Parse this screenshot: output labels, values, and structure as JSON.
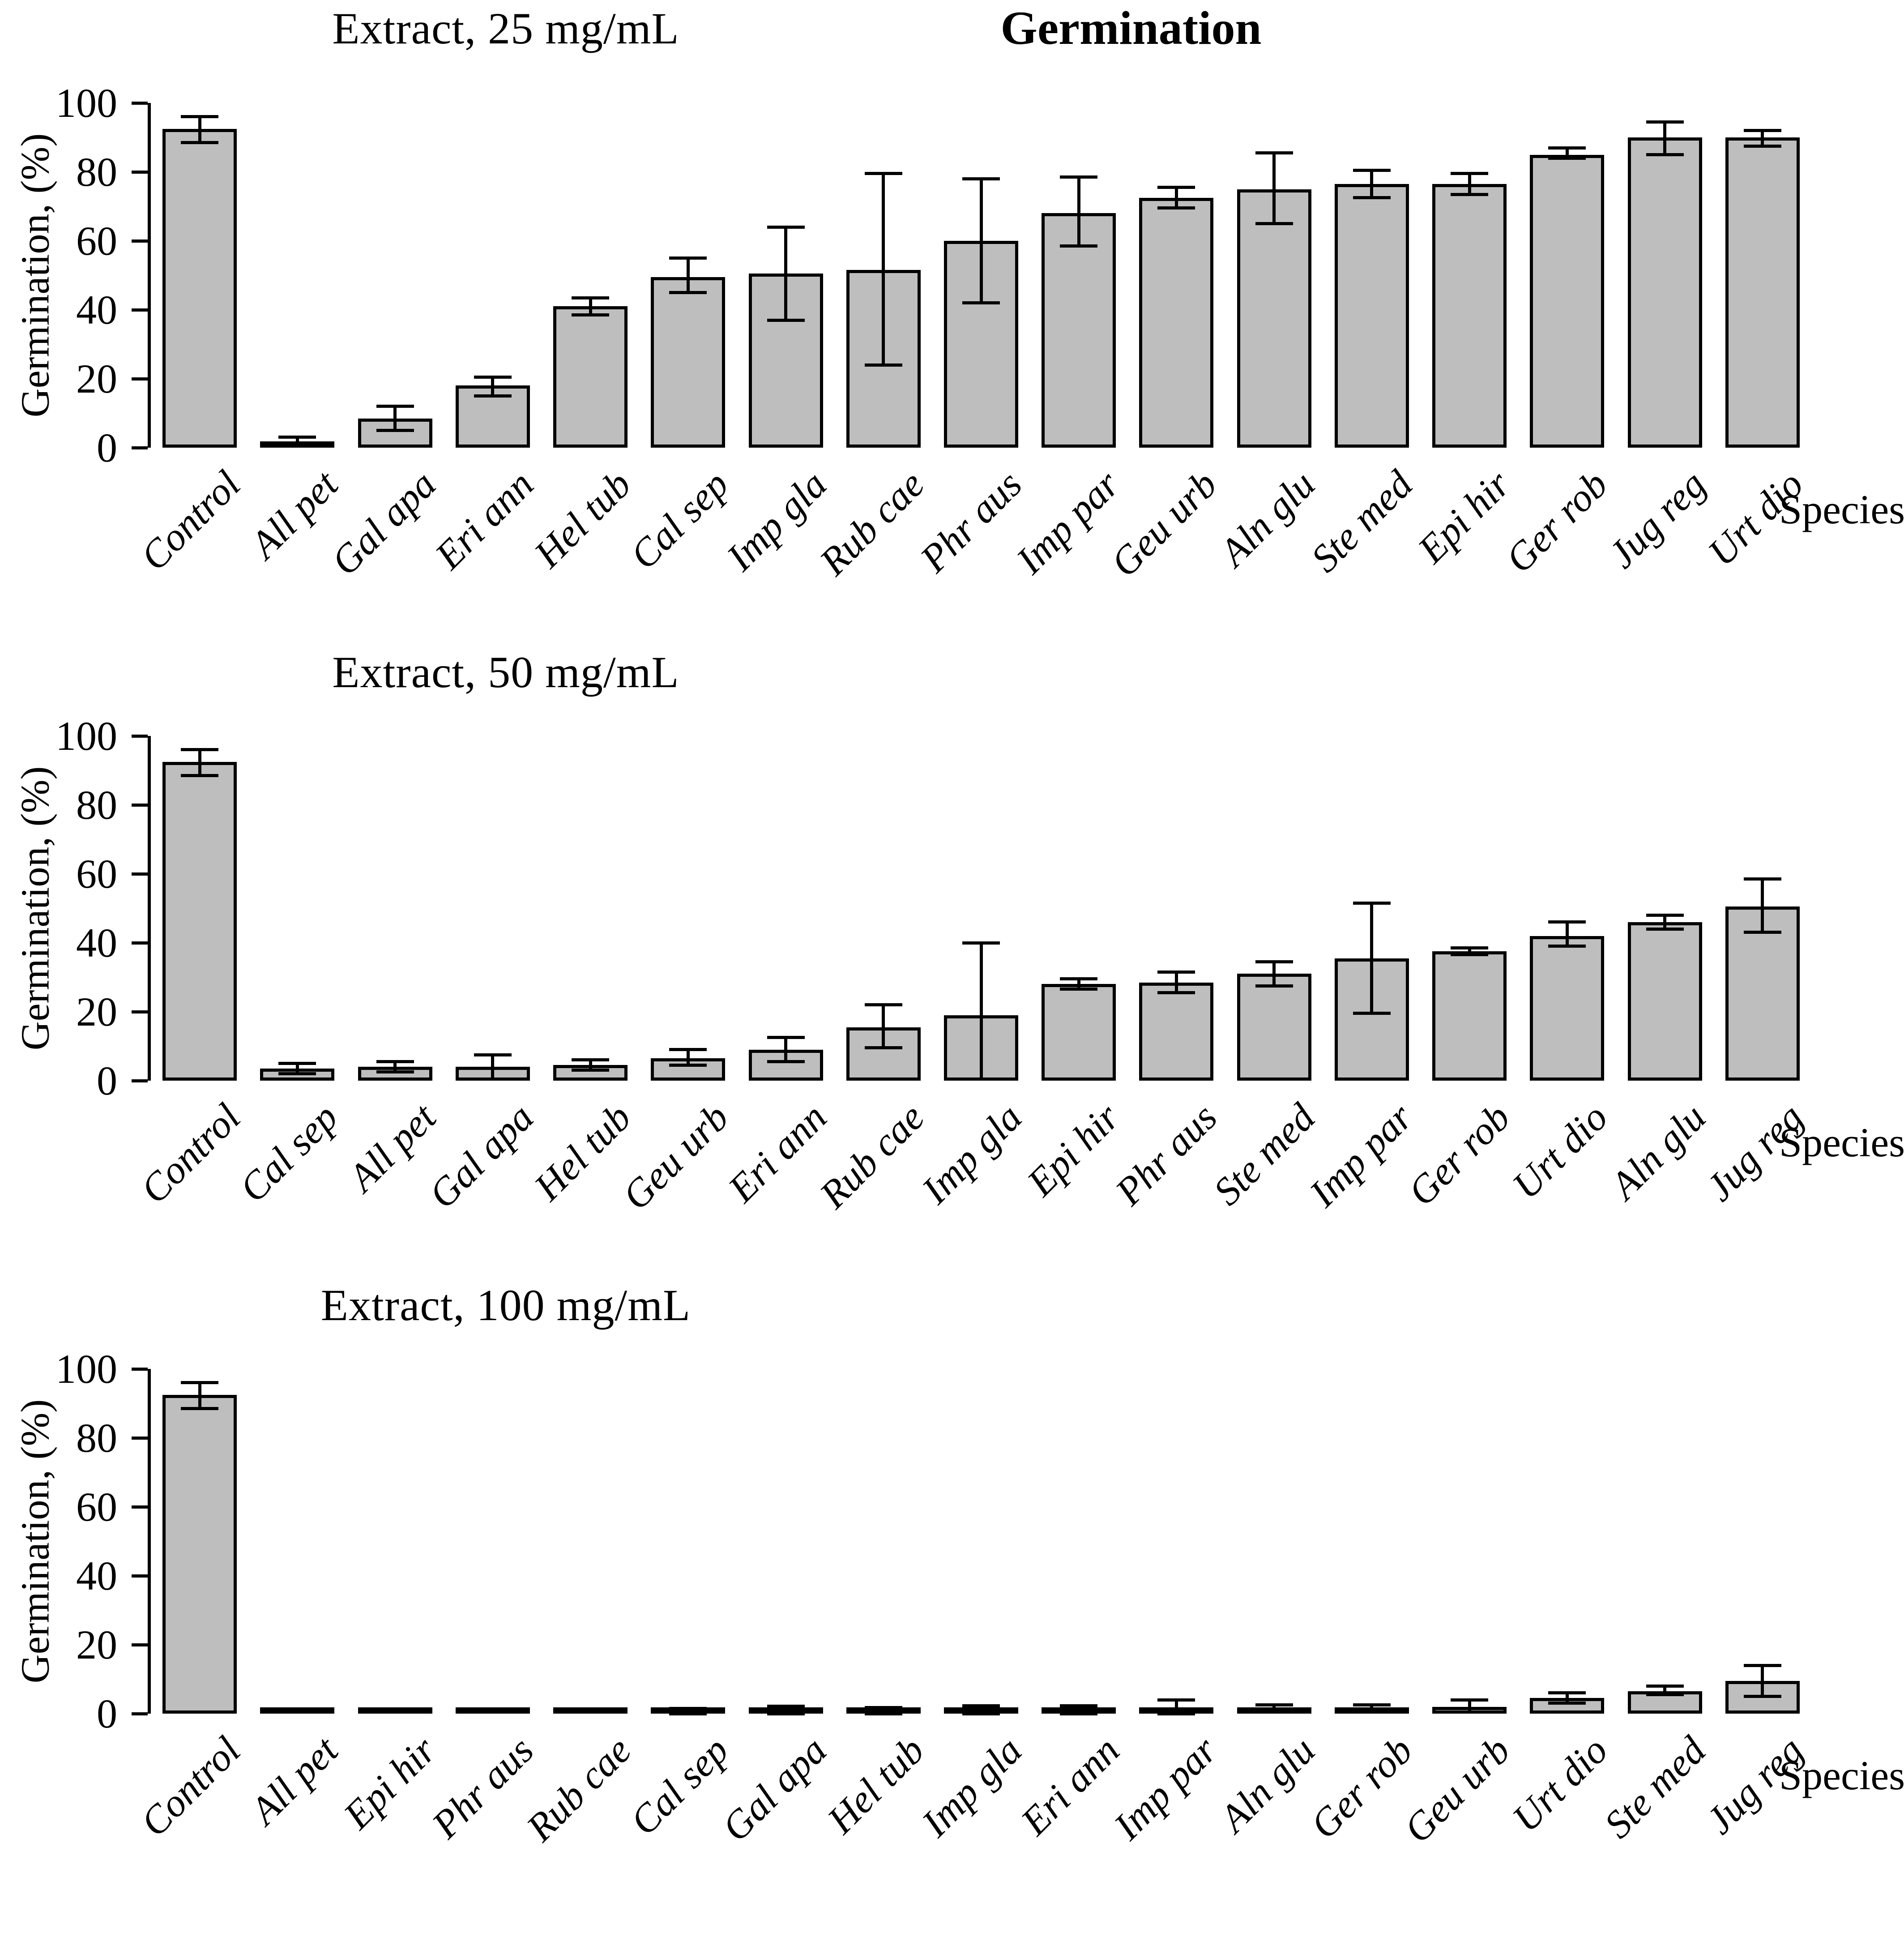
{
  "figure": {
    "main_title": "Germination",
    "y_axis_label": "Germination, (%)",
    "x_axis_label": "Species",
    "background": "#ffffff",
    "bar_fill": "#bebebe",
    "bar_border": "#000000",
    "error_bar_color": "#000000"
  },
  "chart_data": [
    {
      "type": "bar",
      "title": "Extract, 25 mg/mL",
      "xlabel": "Species",
      "ylabel": "Germination, (%)",
      "ylim": [
        0,
        100
      ],
      "yticks": [
        0,
        20,
        40,
        60,
        80,
        100
      ],
      "grid": false,
      "categories": [
        "Control",
        "All pet",
        "Gal apa",
        "Eri ann",
        "Hel tub",
        "Cal sep",
        "Imp gla",
        "Rub cae",
        "Phr aus",
        "Imp par",
        "Geu urb",
        "Aln glu",
        "Ste med",
        "Epi hir",
        "Ger rob",
        "Jug reg",
        "Urt dio"
      ],
      "values": [
        92.5,
        1.5,
        8.5,
        18,
        41,
        49.5,
        50.5,
        51.5,
        60,
        68,
        72.5,
        75,
        76.5,
        76.5,
        85,
        90,
        90
      ],
      "error_low": [
        88.5,
        0.5,
        5,
        15,
        38.5,
        45,
        37,
        24,
        42,
        58.5,
        69.5,
        65,
        72.5,
        73.5,
        84,
        85,
        87.5
      ],
      "error_high": [
        96,
        3,
        12,
        20.5,
        43.5,
        55,
        64,
        79.5,
        78,
        78.5,
        75.5,
        85.5,
        80.5,
        79.5,
        87,
        94.5,
        92
      ]
    },
    {
      "type": "bar",
      "title": "Extract, 50 mg/mL",
      "xlabel": "Species",
      "ylabel": "Germination, (%)",
      "ylim": [
        0,
        100
      ],
      "yticks": [
        0,
        20,
        40,
        60,
        80,
        100
      ],
      "grid": false,
      "categories": [
        "Control",
        "Cal sep",
        "All pet",
        "Gal apa",
        "Hel tub",
        "Geu urb",
        "Eri ann",
        "Rub cae",
        "Imp gla",
        "Epi hir",
        "Phr aus",
        "Ste med",
        "Imp par",
        "Ger rob",
        "Urt dio",
        "Aln glu",
        "Jug reg"
      ],
      "values": [
        92.5,
        3.5,
        4,
        4,
        4.5,
        6.5,
        9,
        15.5,
        19,
        28,
        28.5,
        31,
        35.5,
        37.5,
        42,
        46,
        50.5
      ],
      "error_low": [
        88.5,
        2,
        2.5,
        0.5,
        3,
        4.5,
        5.5,
        9.5,
        0.5,
        26.5,
        25.5,
        27.5,
        19.5,
        36.5,
        39,
        44,
        43
      ],
      "error_high": [
        96,
        5,
        5.5,
        7.5,
        6,
        9,
        12.5,
        22,
        40,
        29.5,
        31.5,
        34.5,
        51.5,
        38.5,
        46,
        48,
        58.5
      ]
    },
    {
      "type": "bar",
      "title": "Extract, 100 mg/mL",
      "xlabel": "Species",
      "ylabel": "Germination, (%)",
      "ylim": [
        0,
        100
      ],
      "yticks": [
        0,
        20,
        40,
        60,
        80,
        100
      ],
      "grid": false,
      "categories": [
        "Control",
        "All pet",
        "Epi hir",
        "Phr aus",
        "Rub cae",
        "Cal sep",
        "Gal apa",
        "Hel tub",
        "Imp gla",
        "Eri ann",
        "Imp par",
        "Aln glu",
        "Ger rob",
        "Geu urb",
        "Urt dio",
        "Ste med",
        "Jug reg"
      ],
      "values": [
        92.5,
        0,
        0,
        0,
        0,
        0.5,
        0.7,
        0.7,
        1,
        1,
        1.5,
        1.5,
        1.5,
        2,
        4.5,
        6.5,
        9.5
      ],
      "error_low": [
        88.5,
        0,
        0,
        0,
        0,
        0,
        0,
        0,
        0,
        0,
        0,
        0.5,
        0.5,
        0.5,
        3,
        5.5,
        5
      ],
      "error_high": [
        96,
        0,
        0,
        0,
        0,
        1.5,
        2.2,
        1.8,
        2.3,
        2.3,
        4,
        2.5,
        2.5,
        4,
        6,
        8,
        14
      ]
    }
  ]
}
